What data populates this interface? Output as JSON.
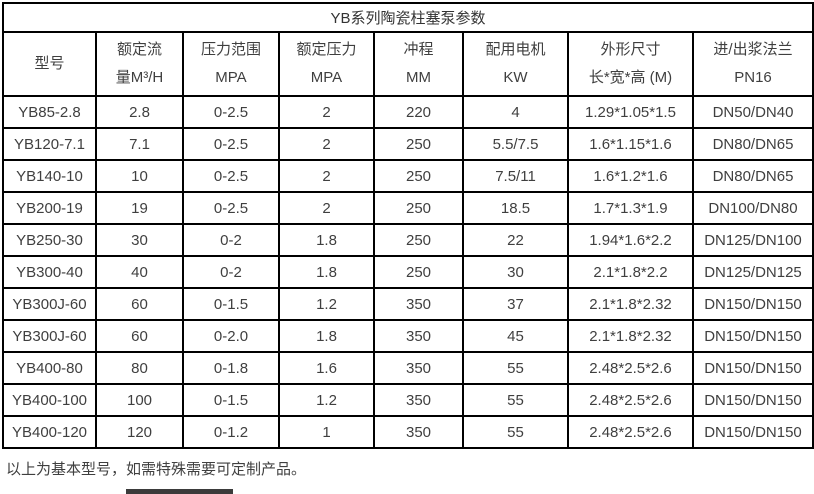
{
  "page": {
    "background": "#ffffff"
  },
  "table": {
    "title": "YB系列陶瓷柱塞泵参数",
    "border_color": "#000000",
    "text_color": "#3f3f3f",
    "headers": [
      {
        "line1": "型号",
        "line2": ""
      },
      {
        "line1": "额定流",
        "line2": "量M³/H"
      },
      {
        "line1": "压力范围",
        "line2": "MPA"
      },
      {
        "line1": "额定压力",
        "line2": "MPA"
      },
      {
        "line1": "冲程",
        "line2": "MM"
      },
      {
        "line1": "配用电机",
        "line2": "KW"
      },
      {
        "line1": "外形尺寸",
        "line2": "长*宽*高 (M)"
      },
      {
        "line1": "进/出浆法兰",
        "line2": "PN16"
      }
    ],
    "rows": [
      [
        "YB85-2.8",
        "2.8",
        "0-2.5",
        "2",
        "220",
        "4",
        "1.29*1.05*1.5",
        "DN50/DN40"
      ],
      [
        "YB120-7.1",
        "7.1",
        "0-2.5",
        "2",
        "250",
        "5.5/7.5",
        "1.6*1.15*1.6",
        "DN80/DN65"
      ],
      [
        "YB140-10",
        "10",
        "0-2.5",
        "2",
        "250",
        "7.5/11",
        "1.6*1.2*1.6",
        "DN80/DN65"
      ],
      [
        "YB200-19",
        "19",
        "0-2.5",
        "2",
        "250",
        "18.5",
        "1.7*1.3*1.9",
        "DN100/DN80"
      ],
      [
        "YB250-30",
        "30",
        "0-2",
        "1.8",
        "250",
        "22",
        "1.94*1.6*2.2",
        "DN125/DN100"
      ],
      [
        "YB300-40",
        "40",
        "0-2",
        "1.8",
        "250",
        "30",
        "2.1*1.8*2.2",
        "DN125/DN125"
      ],
      [
        "YB300J-60",
        "60",
        "0-1.5",
        "1.2",
        "350",
        "37",
        "2.1*1.8*2.32",
        "DN150/DN150"
      ],
      [
        "YB300J-60",
        "60",
        "0-2.0",
        "1.8",
        "350",
        "45",
        "2.1*1.8*2.32",
        "DN150/DN150"
      ],
      [
        "YB400-80",
        "80",
        "0-1.8",
        "1.6",
        "350",
        "55",
        "2.48*2.5*2.6",
        "DN150/DN150"
      ],
      [
        "YB400-100",
        "100",
        "0-1.5",
        "1.2",
        "350",
        "55",
        "2.48*2.5*2.6",
        "DN150/DN150"
      ],
      [
        "YB400-120",
        "120",
        "0-1.2",
        "1",
        "350",
        "55",
        "2.48*2.5*2.6",
        "DN150/DN150"
      ]
    ]
  },
  "footer": {
    "note": "以上为基本型号，如需特殊需要可定制产品。"
  },
  "decor": {
    "cutoff_bar_color": "#3b3b3b"
  }
}
